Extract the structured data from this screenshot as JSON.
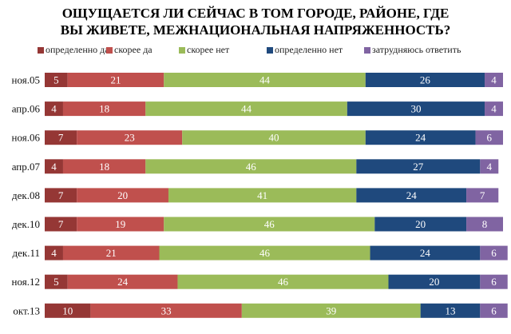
{
  "chart_data": {
    "type": "bar",
    "orientation": "horizontal",
    "stacked": true,
    "title_lines": [
      "ОЩУЩАЕТСЯ ЛИ СЕЙЧАС В ТОМ ГОРОДЕ, РАЙОНЕ, ГДЕ",
      "ВЫ ЖИВЕТЕ, МЕЖНАЦИОНАЛЬНАЯ НАПРЯЖЕННОСТЬ?"
    ],
    "legend_position": "top",
    "categories": [
      "ноя.05",
      "апр.06",
      "ноя.06",
      "апр.07",
      "дек.08",
      "дек.10",
      "дек.11",
      "ноя.12",
      "окт.13"
    ],
    "series": [
      {
        "name": "определенно да",
        "color": "#953735",
        "values": [
          5,
          4,
          7,
          4,
          7,
          7,
          4,
          5,
          10
        ]
      },
      {
        "name": "скорее да",
        "color": "#C0504D",
        "values": [
          21,
          18,
          23,
          18,
          20,
          19,
          21,
          24,
          33
        ]
      },
      {
        "name": "скорее нет",
        "color": "#9BBB59",
        "values": [
          44,
          44,
          40,
          46,
          41,
          46,
          46,
          46,
          39
        ]
      },
      {
        "name": "определенно нет",
        "color": "#1F497D",
        "values": [
          26,
          30,
          24,
          27,
          24,
          20,
          24,
          20,
          13
        ]
      },
      {
        "name": "затрудняюсь ответить",
        "color": "#8064A2",
        "values": [
          4,
          4,
          6,
          4,
          7,
          8,
          6,
          6,
          6
        ]
      }
    ],
    "data_labels": true,
    "xlim": [
      0,
      100
    ]
  }
}
